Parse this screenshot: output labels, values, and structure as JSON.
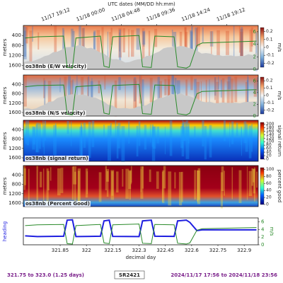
{
  "chart_data": [
    {
      "type": "heatmap",
      "label": "os38nb (E/W velocity)",
      "ylabel": "meters",
      "ylim": [
        0,
        1750
      ],
      "yticks": [
        400,
        800,
        1200,
        1600
      ],
      "y2lim": [
        0,
        7
      ],
      "y2ticks": [
        0,
        2,
        4,
        6
      ],
      "colorbar": {
        "label": "m/s",
        "lim": [
          -0.25,
          0.25
        ],
        "ticks": [
          -0.2,
          -0.1,
          0,
          0.1,
          0.2
        ]
      },
      "x2label": "UTC dates (MM/DD hh:mm)",
      "x2ticks": [
        {
          "value": 321.8,
          "label": "11/17 19:12"
        },
        {
          "value": 322.0,
          "label": "11/18 00:00"
        },
        {
          "value": 322.2,
          "label": "11/18 04:48"
        },
        {
          "value": 322.4,
          "label": "11/18 09:36"
        },
        {
          "value": 322.6,
          "label": "11/18 14:24"
        },
        {
          "value": 322.8,
          "label": "11/18 19:12"
        }
      ]
    },
    {
      "type": "heatmap",
      "label": "os38nb (N/S velocity)",
      "ylabel": "meters",
      "ylim": [
        0,
        1750
      ],
      "yticks": [
        400,
        800,
        1200,
        1600
      ],
      "y2lim": [
        0,
        7
      ],
      "y2ticks": [
        0,
        2,
        4,
        6
      ],
      "colorbar": {
        "label": "m/s",
        "lim": [
          -0.25,
          0.25
        ],
        "ticks": [
          -0.2,
          -0.1,
          0,
          0.1,
          0.2
        ]
      }
    },
    {
      "type": "heatmap",
      "label": "os38nb (signal return)",
      "ylabel": "meters",
      "ylim": [
        0,
        1750
      ],
      "yticks": [
        400,
        800,
        1200,
        1600
      ],
      "colorbar": {
        "label": "signal return",
        "lim": [
          0,
          210
        ],
        "ticks": [
          0,
          20,
          40,
          60,
          80,
          100,
          120,
          140,
          160,
          180,
          200
        ]
      }
    },
    {
      "type": "heatmap",
      "label": "os38nb (Percent Good)",
      "ylabel": "meters",
      "ylim": [
        0,
        1750
      ],
      "yticks": [
        400,
        800,
        1200,
        1600
      ],
      "colorbar": {
        "label": "percent good",
        "lim": [
          0,
          105
        ],
        "ticks": [
          0,
          20,
          40,
          60,
          80,
          100
        ]
      }
    },
    {
      "type": "line",
      "xlabel": "decimal day",
      "xlim": [
        321.64,
        322.98
      ],
      "xticks": [
        321.85,
        322.0,
        322.15,
        322.3,
        322.45,
        322.6,
        322.75,
        322.9
      ],
      "ylabel": "heading",
      "ylim": [
        0,
        360
      ],
      "y2label": "m/s",
      "y2lim": [
        0,
        7
      ],
      "y2ticks": [
        0,
        2,
        4,
        6
      ],
      "x": [
        321.65,
        321.72,
        321.87,
        321.89,
        321.92,
        321.94,
        322.08,
        322.1,
        322.13,
        322.15,
        322.3,
        322.32,
        322.37,
        322.39,
        322.5,
        322.52,
        322.57,
        322.59,
        322.63,
        322.66,
        322.97
      ],
      "series": [
        {
          "name": "heading",
          "color": "#1f1fe0",
          "values": [
            120,
            110,
            115,
            330,
            335,
            110,
            115,
            320,
            330,
            112,
            110,
            320,
            330,
            115,
            112,
            320,
            330,
            300,
            190,
            200,
            200
          ]
        },
        {
          "name": "ship spd",
          "color": "#2a8a2a",
          "axis": "y2",
          "values": [
            5.0,
            5.2,
            5.3,
            0.3,
            0.2,
            5.0,
            5.3,
            0.5,
            0.3,
            5.2,
            5.4,
            0.4,
            0.3,
            5.3,
            5.2,
            0.4,
            0.2,
            0.5,
            3.8,
            4.2,
            4.5
          ]
        }
      ]
    }
  ],
  "footer": {
    "left": "321.75 to 323.0 (1.25 days)",
    "center": "SR2421",
    "right": "2024/11/17 17:56 to 2024/11/18 23:56"
  }
}
